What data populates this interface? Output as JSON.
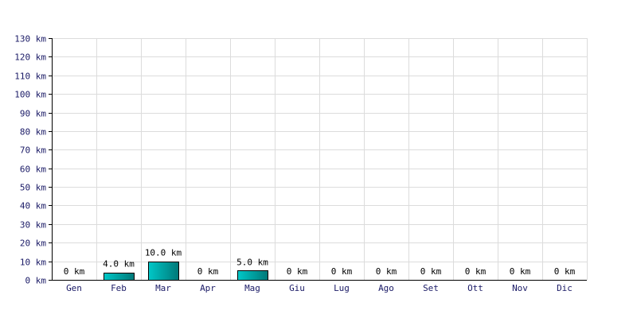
{
  "chart_data": {
    "type": "bar",
    "categories": [
      "Gen",
      "Feb",
      "Mar",
      "Apr",
      "Mag",
      "Giu",
      "Lug",
      "Ago",
      "Set",
      "Ott",
      "Nov",
      "Dic"
    ],
    "values": [
      0,
      4,
      10,
      0,
      5,
      0,
      0,
      0,
      0,
      0,
      0,
      0
    ],
    "data_labels": [
      "0 km",
      "4.0 km",
      "10.0 km",
      "0 km",
      "5.0 km",
      "0 km",
      "0 km",
      "0 km",
      "0 km",
      "0 km",
      "0 km",
      "0 km"
    ],
    "y_ticks": [
      0,
      10,
      20,
      30,
      40,
      50,
      60,
      70,
      80,
      90,
      100,
      110,
      120,
      130
    ],
    "y_tick_labels": [
      "0 km",
      "10 km",
      "20 km",
      "30 km",
      "40 km",
      "50 km",
      "60 km",
      "70 km",
      "80 km",
      "90 km",
      "100 km",
      "110 km",
      "120 km",
      "130 km"
    ],
    "ylim": [
      0,
      130
    ],
    "title": "",
    "xlabel": "",
    "ylabel": "",
    "grid": true,
    "colors": {
      "bar_fill_start": "#00c8c8",
      "bar_fill_end": "#007878",
      "grid": "#dcdcdc",
      "tick_text": "#1a1a66"
    }
  }
}
